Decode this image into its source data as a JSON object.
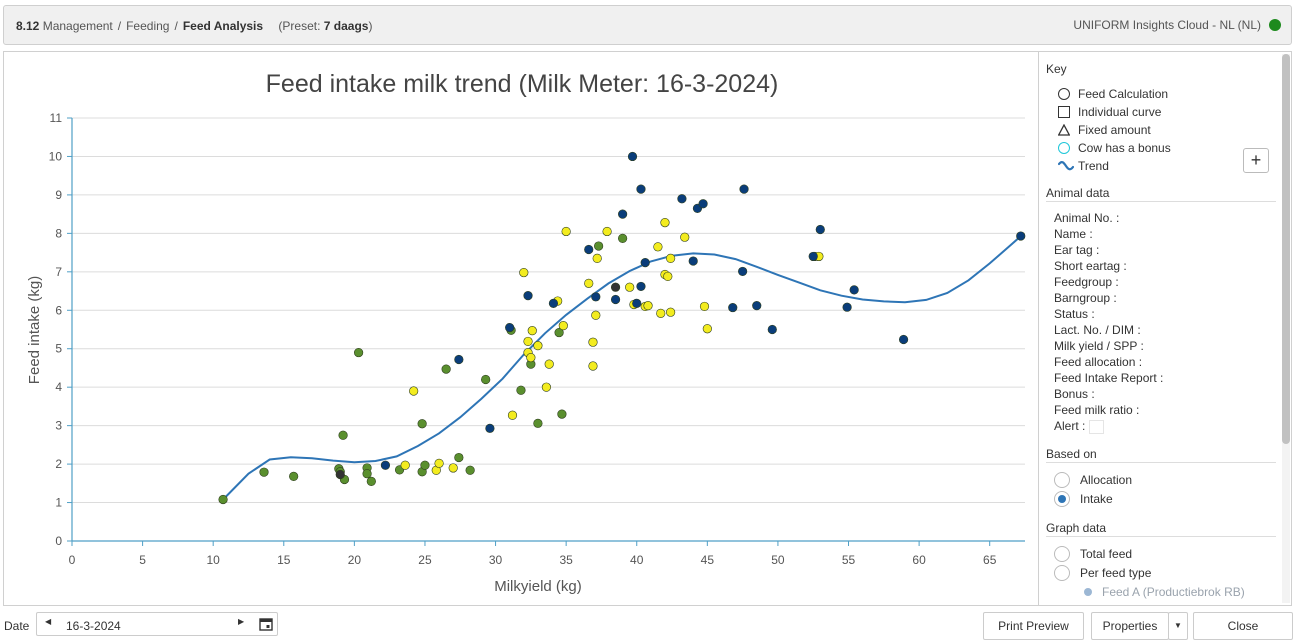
{
  "header": {
    "number": "8.12",
    "crumbs": [
      "Management",
      "Feeding"
    ],
    "current": "Feed Analysis",
    "preset_prefix": "(Preset: ",
    "preset_value": "7 daags",
    "preset_suffix": ")",
    "cloud_label": "UNIFORM Insights Cloud - NL (NL)",
    "status_color": "#1e8a1e"
  },
  "sidebar": {
    "key_title": "Key",
    "key_items": [
      {
        "label": "Feed Calculation",
        "icon": "circle-icon"
      },
      {
        "label": "Individual curve",
        "icon": "square-icon"
      },
      {
        "label": "Fixed amount",
        "icon": "triangle-icon"
      },
      {
        "label": "Cow has a bonus",
        "icon": "bonus-circle-icon"
      },
      {
        "label": "Trend",
        "icon": "trend-wave-icon"
      }
    ],
    "add_button": "+",
    "animal_title": "Animal data",
    "animal_fields": [
      "Animal No. :",
      "Name :",
      "Ear tag :",
      "Short eartag :",
      "Feedgroup :",
      "Barngroup :",
      "Status :",
      "Lact. No. / DIM :",
      "Milk yield / SPP :",
      "Feed allocation :",
      "Feed Intake Report :",
      "Bonus :",
      "Feed milk ratio :",
      "Alert :"
    ],
    "based_on_title": "Based on",
    "based_on_options": [
      {
        "label": "Allocation",
        "selected": false
      },
      {
        "label": "Intake",
        "selected": true
      }
    ],
    "graph_title": "Graph data",
    "graph_options": [
      {
        "label": "Total feed",
        "selected": false
      },
      {
        "label": "Per feed type",
        "selected": false
      }
    ],
    "feed_sub_option": "Feed A (Productiebrok RB)"
  },
  "footer": {
    "date_label": "Date",
    "date_value": "16-3-2024",
    "print_preview": "Print Preview",
    "properties": "Properties",
    "close": "Close"
  },
  "chart_data": {
    "type": "scatter",
    "title": "Feed intake milk trend (Milk Meter: 16-3-2024)",
    "xlabel": "Milkyield (kg)",
    "ylabel": "Feed intake (kg)",
    "xlim": [
      0,
      67.5
    ],
    "ylim": [
      0,
      11
    ],
    "xticks": [
      0,
      5,
      10,
      15,
      20,
      25,
      30,
      35,
      40,
      45,
      50,
      55,
      60,
      65
    ],
    "yticks": [
      0,
      1,
      2,
      3,
      4,
      5,
      6,
      7,
      8,
      9,
      10,
      11
    ],
    "grid": "horizontal",
    "colors": {
      "green": "#5a8f2e",
      "yellow": "#f3ec1f",
      "blue": "#0a3d7a",
      "dark": "#333333",
      "trend": "#2e75b6",
      "axis": "#4f9fc6"
    },
    "series": [
      {
        "color_key": "green",
        "points": [
          [
            10.7,
            1.08
          ],
          [
            13.6,
            1.79
          ],
          [
            15.7,
            1.68
          ],
          [
            18.9,
            1.88
          ],
          [
            19.0,
            1.8
          ],
          [
            19.3,
            1.6
          ],
          [
            19.2,
            2.75
          ],
          [
            20.3,
            4.9
          ],
          [
            20.9,
            1.9
          ],
          [
            20.9,
            1.75
          ],
          [
            21.2,
            1.55
          ],
          [
            23.2,
            1.85
          ],
          [
            24.8,
            3.05
          ],
          [
            24.8,
            1.8
          ],
          [
            25.0,
            1.97
          ],
          [
            26.5,
            4.47
          ],
          [
            27.4,
            2.17
          ],
          [
            28.2,
            1.84
          ],
          [
            29.3,
            4.2
          ],
          [
            31.1,
            5.48
          ],
          [
            31.8,
            3.92
          ],
          [
            32.5,
            4.6
          ],
          [
            33.0,
            3.06
          ],
          [
            34.5,
            5.42
          ],
          [
            34.7,
            3.3
          ],
          [
            37.3,
            7.67
          ],
          [
            39.0,
            7.87
          ],
          [
            52.6,
            7.4
          ]
        ]
      },
      {
        "color_key": "yellow",
        "points": [
          [
            23.6,
            1.97
          ],
          [
            24.2,
            3.9
          ],
          [
            25.8,
            1.84
          ],
          [
            26.0,
            2.02
          ],
          [
            27.0,
            1.9
          ],
          [
            31.2,
            3.27
          ],
          [
            32.0,
            6.98
          ],
          [
            32.3,
            4.9
          ],
          [
            32.3,
            5.19
          ],
          [
            32.6,
            5.47
          ],
          [
            32.5,
            4.77
          ],
          [
            33.0,
            5.08
          ],
          [
            33.6,
            4.0
          ],
          [
            33.8,
            4.6
          ],
          [
            34.4,
            6.24
          ],
          [
            34.8,
            5.6
          ],
          [
            35.0,
            8.05
          ],
          [
            36.6,
            6.7
          ],
          [
            36.9,
            5.17
          ],
          [
            36.9,
            4.55
          ],
          [
            37.1,
            5.87
          ],
          [
            37.2,
            7.35
          ],
          [
            37.9,
            8.05
          ],
          [
            39.5,
            6.6
          ],
          [
            39.8,
            6.15
          ],
          [
            40.6,
            6.1
          ],
          [
            40.8,
            6.12
          ],
          [
            41.5,
            7.65
          ],
          [
            41.7,
            5.92
          ],
          [
            42.0,
            8.28
          ],
          [
            42.0,
            6.93
          ],
          [
            42.2,
            6.88
          ],
          [
            42.4,
            7.35
          ],
          [
            42.4,
            5.95
          ],
          [
            43.4,
            7.9
          ],
          [
            44.8,
            6.1
          ],
          [
            45.0,
            5.52
          ],
          [
            52.9,
            7.4
          ]
        ]
      },
      {
        "color_key": "blue",
        "points": [
          [
            22.2,
            1.97
          ],
          [
            27.4,
            4.72
          ],
          [
            29.6,
            2.93
          ],
          [
            31.0,
            5.55
          ],
          [
            32.3,
            6.38
          ],
          [
            34.1,
            6.18
          ],
          [
            36.6,
            7.58
          ],
          [
            37.1,
            6.35
          ],
          [
            38.5,
            6.28
          ],
          [
            39.0,
            8.5
          ],
          [
            39.7,
            10.0
          ],
          [
            40.0,
            6.18
          ],
          [
            40.3,
            6.62
          ],
          [
            40.3,
            9.15
          ],
          [
            40.6,
            7.24
          ],
          [
            43.2,
            8.9
          ],
          [
            44.0,
            7.28
          ],
          [
            44.3,
            8.65
          ],
          [
            44.7,
            8.77
          ],
          [
            46.8,
            6.07
          ],
          [
            47.5,
            7.01
          ],
          [
            47.6,
            9.15
          ],
          [
            48.5,
            6.12
          ],
          [
            49.6,
            5.5
          ],
          [
            52.5,
            7.4
          ],
          [
            53.0,
            8.1
          ],
          [
            54.9,
            6.08
          ],
          [
            55.4,
            6.53
          ],
          [
            58.9,
            5.24
          ],
          [
            67.2,
            7.93
          ]
        ]
      },
      {
        "color_key": "dark",
        "points": [
          [
            19.0,
            1.73
          ],
          [
            38.5,
            6.6
          ]
        ]
      }
    ],
    "trend": [
      [
        10.7,
        1.08
      ],
      [
        12.5,
        1.75
      ],
      [
        14.0,
        2.12
      ],
      [
        15.5,
        2.18
      ],
      [
        17.0,
        2.15
      ],
      [
        18.5,
        2.09
      ],
      [
        20.0,
        2.05
      ],
      [
        21.5,
        2.08
      ],
      [
        23.0,
        2.2
      ],
      [
        24.5,
        2.47
      ],
      [
        26.0,
        2.8
      ],
      [
        27.5,
        3.22
      ],
      [
        29.0,
        3.7
      ],
      [
        30.5,
        4.22
      ],
      [
        32.0,
        4.85
      ],
      [
        33.5,
        5.4
      ],
      [
        35.0,
        5.88
      ],
      [
        36.5,
        6.3
      ],
      [
        38.0,
        6.7
      ],
      [
        39.5,
        7.02
      ],
      [
        41.0,
        7.27
      ],
      [
        42.5,
        7.42
      ],
      [
        44.0,
        7.48
      ],
      [
        45.5,
        7.45
      ],
      [
        47.0,
        7.33
      ],
      [
        48.5,
        7.13
      ],
      [
        50.0,
        6.92
      ],
      [
        51.5,
        6.72
      ],
      [
        53.0,
        6.52
      ],
      [
        54.5,
        6.38
      ],
      [
        56.0,
        6.28
      ],
      [
        57.5,
        6.23
      ],
      [
        59.0,
        6.21
      ],
      [
        60.5,
        6.27
      ],
      [
        62.0,
        6.45
      ],
      [
        63.5,
        6.78
      ],
      [
        65.0,
        7.22
      ],
      [
        66.5,
        7.7
      ],
      [
        67.2,
        7.93
      ]
    ]
  }
}
